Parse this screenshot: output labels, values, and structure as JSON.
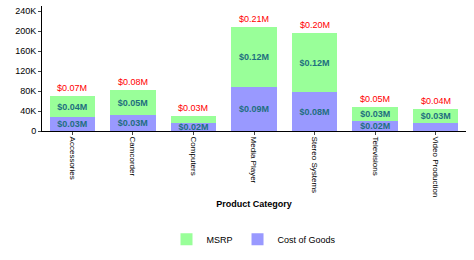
{
  "chart_data": {
    "type": "bar",
    "stacked": true,
    "data_labels": true,
    "grid": false,
    "legend": "bottom",
    "x_label": "Product Category",
    "categories": [
      "Accessories",
      "Camcorder",
      "Computers",
      "Media Player",
      "Stereo Systems",
      "Televisions",
      "Video Production"
    ],
    "series": [
      {
        "name": "Cost of Goods",
        "color": "#9999ff",
        "values": [
          28000,
          32000,
          17000,
          88000,
          78000,
          20000,
          16000
        ],
        "value_labels": [
          "$0.03M",
          "$0.03M",
          "$0.02M",
          "$0.09M",
          "$0.08M",
          "$0.02M",
          null
        ]
      },
      {
        "name": "MSRP",
        "color": "#99ff99",
        "values": [
          42000,
          50000,
          14000,
          120000,
          118000,
          28000,
          28000
        ],
        "value_labels": [
          "$0.04M",
          "$0.05M",
          null,
          "$0.12M",
          "$0.12M",
          "$0.03M",
          "$0.03M"
        ]
      }
    ],
    "total_labels": [
      "$0.07M",
      "$0.08M",
      "$0.03M",
      "$0.21M",
      "$0.20M",
      "$0.05M",
      "$0.04M"
    ],
    "ylim": [
      0,
      250000
    ],
    "yticks": [
      {
        "value": 0,
        "label": "0"
      },
      {
        "value": 40000,
        "label": "40K"
      },
      {
        "value": 80000,
        "label": "80K"
      },
      {
        "value": 120000,
        "label": "120K"
      },
      {
        "value": 160000,
        "label": "160K"
      },
      {
        "value": 200000,
        "label": "200K"
      },
      {
        "value": 240000,
        "label": "240K"
      }
    ]
  }
}
